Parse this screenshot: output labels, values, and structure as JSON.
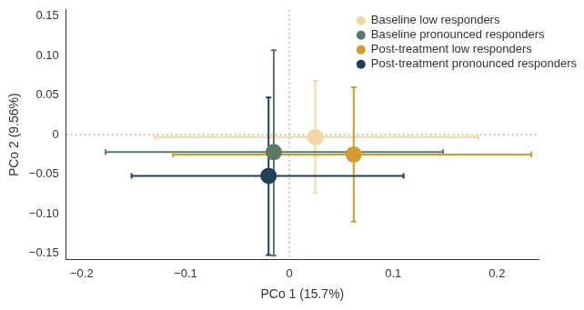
{
  "chart_data": {
    "type": "scatter",
    "x_label": "PCo 1 (15.7%)",
    "y_label": "PCo 2 (9.56%)",
    "xlim": [
      -0.215,
      0.24
    ],
    "ylim": [
      -0.158,
      0.158
    ],
    "xticks": [
      {
        "value": -0.2,
        "label": "−0.2"
      },
      {
        "value": -0.1,
        "label": "−0.1"
      },
      0,
      0.1,
      0.2
    ],
    "yticks": [
      {
        "value": -0.15,
        "label": "−0.15"
      },
      {
        "value": -0.1,
        "label": "−0.10"
      },
      {
        "value": -0.05,
        "label": "−0.05"
      },
      0,
      {
        "value": 0.05,
        "label": "0.05"
      },
      {
        "value": 0.1,
        "label": "0.10"
      },
      0.15
    ],
    "grid": false,
    "legend": "upper right",
    "reference_lines": [
      {
        "axis": "x",
        "value": 0
      },
      {
        "axis": "y",
        "value": 0
      }
    ],
    "series": [
      {
        "name": "Baseline low responders",
        "color": "#f3d6a2",
        "marker": "circle",
        "x": [
          0.025
        ],
        "values": [
          -0.003
        ],
        "x_range": [
          [
            -0.13,
            0.182
          ]
        ],
        "y_range": [
          [
            -0.073,
            0.068
          ]
        ]
      },
      {
        "name": "Baseline pronounced responders",
        "color": "#5b7a62",
        "marker": "circle",
        "x": [
          -0.015
        ],
        "values": [
          -0.022
        ],
        "x_range": [
          [
            -0.177,
            0.148
          ]
        ],
        "y_range": [
          [
            -0.153,
            0.107
          ]
        ]
      },
      {
        "name": "Post-treatment low responders",
        "color": "#d39a2c",
        "marker": "circle",
        "x": [
          0.062
        ],
        "values": [
          -0.025
        ],
        "x_range": [
          [
            -0.112,
            0.233
          ]
        ],
        "y_range": [
          [
            -0.11,
            0.06
          ]
        ]
      },
      {
        "name": "Post-treatment pronounced responders",
        "color": "#1f3f5b",
        "marker": "circle",
        "x": [
          -0.02
        ],
        "values": [
          -0.052
        ],
        "x_range": [
          [
            -0.152,
            0.11
          ]
        ],
        "y_range": [
          [
            -0.152,
            0.047
          ]
        ]
      }
    ]
  }
}
